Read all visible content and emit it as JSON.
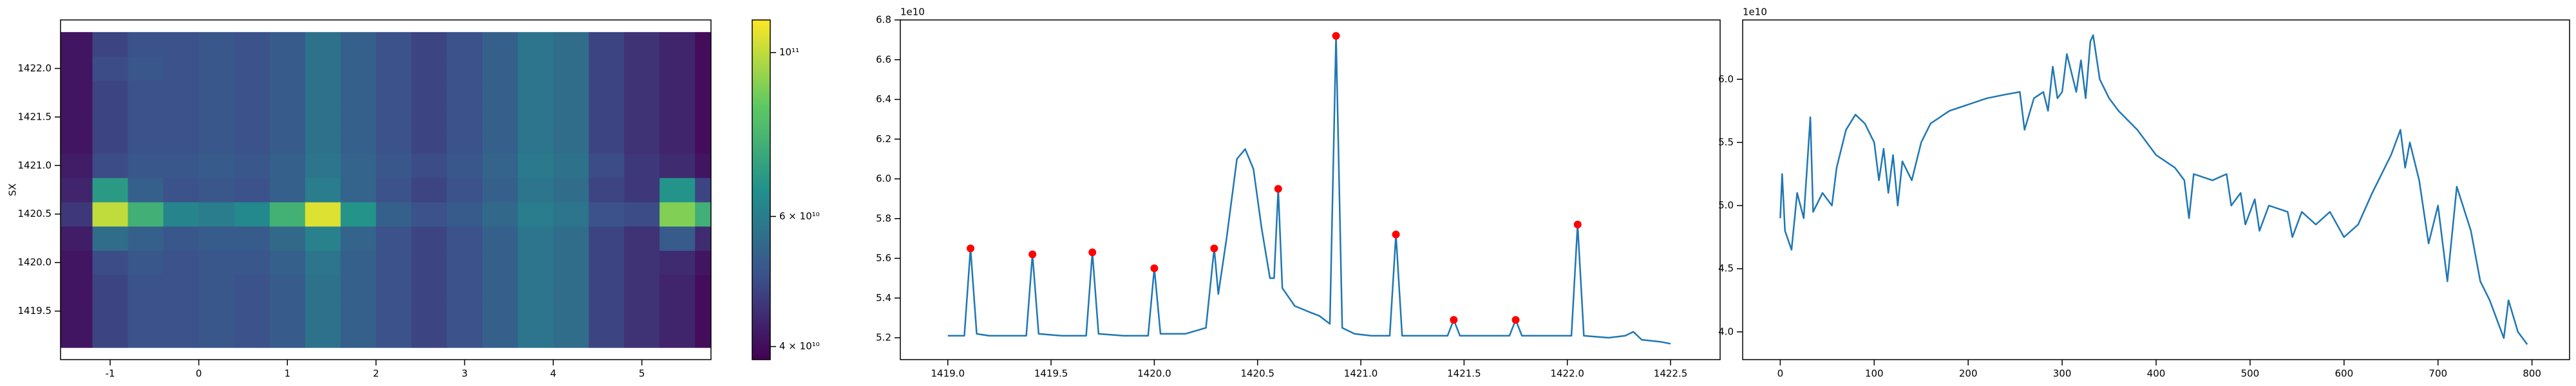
{
  "chart_data": [
    {
      "type": "heatmap",
      "cmap": "viridis",
      "ylabel": "SX",
      "xlim": [
        -1.56,
        5.78
      ],
      "ylim": [
        1419.0,
        1422.5
      ],
      "xticks": [
        -1,
        0,
        1,
        2,
        3,
        4,
        5
      ],
      "yticks": [
        1419.5,
        {
          "value": 1420.0,
          "label": "1420.0"
        },
        1420.5,
        {
          "value": 1421.0,
          "label": "1421.0"
        },
        1421.5,
        {
          "value": 1422.0,
          "label": "1422.0"
        }
      ],
      "x": [
        -1.4,
        -1.0,
        -0.6,
        -0.2,
        0.2,
        0.6,
        1.0,
        1.4,
        1.8,
        2.2,
        2.6,
        3.0,
        3.4,
        3.8,
        4.2,
        4.6,
        5.0,
        5.4,
        5.8
      ],
      "y": [
        1419.25,
        1419.5,
        1419.75,
        1420.0,
        1420.25,
        1420.5,
        1420.75,
        1421.0,
        1421.25,
        1421.5,
        1421.75,
        1422.0,
        1422.25
      ],
      "z": [
        [
          41000000000.0,
          48000000000.0,
          50000000000.0,
          50000000000.0,
          51000000000.0,
          50000000000.0,
          52000000000.0,
          57000000000.0,
          53000000000.0,
          50000000000.0,
          48000000000.0,
          50000000000.0,
          53000000000.0,
          58000000000.0,
          56000000000.0,
          48000000000.0,
          45000000000.0,
          43000000000.0,
          40000000000.0
        ],
        [
          41000000000.0,
          48000000000.0,
          50000000000.0,
          50000000000.0,
          51000000000.0,
          50000000000.0,
          52000000000.0,
          57000000000.0,
          53000000000.0,
          50000000000.0,
          48000000000.0,
          50000000000.0,
          53000000000.0,
          58000000000.0,
          56000000000.0,
          48000000000.0,
          45000000000.0,
          43000000000.0,
          40000000000.0
        ],
        [
          41000000000.0,
          48000000000.0,
          50000000000.0,
          50000000000.0,
          51000000000.0,
          50000000000.0,
          52000000000.0,
          57000000000.0,
          53000000000.0,
          50000000000.0,
          48000000000.0,
          50000000000.0,
          53000000000.0,
          58000000000.0,
          56000000000.0,
          48000000000.0,
          45000000000.0,
          43000000000.0,
          40000000000.0
        ],
        [
          41000000000.0,
          49000000000.0,
          51000000000.0,
          50000000000.0,
          51000000000.0,
          51000000000.0,
          53000000000.0,
          58000000000.0,
          53000000000.0,
          50000000000.0,
          48000000000.0,
          50000000000.0,
          53000000000.0,
          58000000000.0,
          56000000000.0,
          48000000000.0,
          45000000000.0,
          44000000000.0,
          41000000000.0
        ],
        [
          42000000000.0,
          56000000000.0,
          53000000000.0,
          51000000000.0,
          52000000000.0,
          52000000000.0,
          55000000000.0,
          61000000000.0,
          54000000000.0,
          50000000000.0,
          48000000000.0,
          50000000000.0,
          53000000000.0,
          58000000000.0,
          56000000000.0,
          48000000000.0,
          45000000000.0,
          52000000000.0,
          44000000000.0
        ],
        [
          46000000000.0,
          100000000000.0,
          75000000000.0,
          62000000000.0,
          60000000000.0,
          63000000000.0,
          76000000000.0,
          105000000000.0,
          66000000000.0,
          53000000000.0,
          50000000000.0,
          52000000000.0,
          55000000000.0,
          60000000000.0,
          58000000000.0,
          50000000000.0,
          49000000000.0,
          90000000000.0,
          75000000000.0
        ],
        [
          43000000000.0,
          68000000000.0,
          53000000000.0,
          50000000000.0,
          51000000000.0,
          50000000000.0,
          53000000000.0,
          60000000000.0,
          54000000000.0,
          50000000000.0,
          48000000000.0,
          50000000000.0,
          53000000000.0,
          58000000000.0,
          56000000000.0,
          48000000000.0,
          46000000000.0,
          66000000000.0,
          48000000000.0
        ],
        [
          42000000000.0,
          49000000000.0,
          51000000000.0,
          51000000000.0,
          52000000000.0,
          51000000000.0,
          53000000000.0,
          58000000000.0,
          54000000000.0,
          51000000000.0,
          49000000000.0,
          51000000000.0,
          54000000000.0,
          59000000000.0,
          57000000000.0,
          49000000000.0,
          46000000000.0,
          44000000000.0,
          41000000000.0
        ],
        [
          41000000000.0,
          48000000000.0,
          50000000000.0,
          50000000000.0,
          51000000000.0,
          50000000000.0,
          52000000000.0,
          57000000000.0,
          53000000000.0,
          50000000000.0,
          48000000000.0,
          50000000000.0,
          53000000000.0,
          58000000000.0,
          56000000000.0,
          48000000000.0,
          45000000000.0,
          43000000000.0,
          40000000000.0
        ],
        [
          41000000000.0,
          48000000000.0,
          50000000000.0,
          50000000000.0,
          51000000000.0,
          50000000000.0,
          52000000000.0,
          57000000000.0,
          53000000000.0,
          50000000000.0,
          48000000000.0,
          50000000000.0,
          53000000000.0,
          58000000000.0,
          56000000000.0,
          48000000000.0,
          45000000000.0,
          43000000000.0,
          40000000000.0
        ],
        [
          41000000000.0,
          48000000000.0,
          50000000000.0,
          50000000000.0,
          51000000000.0,
          50000000000.0,
          52000000000.0,
          57000000000.0,
          53000000000.0,
          50000000000.0,
          48000000000.0,
          50000000000.0,
          53000000000.0,
          58000000000.0,
          56000000000.0,
          48000000000.0,
          45000000000.0,
          43000000000.0,
          40000000000.0
        ],
        [
          41000000000.0,
          49000000000.0,
          51000000000.0,
          50000000000.0,
          51000000000.0,
          50000000000.0,
          52000000000.0,
          57000000000.0,
          53000000000.0,
          50000000000.0,
          48000000000.0,
          50000000000.0,
          53000000000.0,
          58000000000.0,
          56000000000.0,
          48000000000.0,
          45000000000.0,
          43000000000.0,
          40000000000.0
        ],
        [
          41000000000.0,
          48000000000.0,
          50000000000.0,
          50000000000.0,
          51000000000.0,
          50000000000.0,
          52000000000.0,
          57000000000.0,
          53000000000.0,
          50000000000.0,
          48000000000.0,
          50000000000.0,
          53000000000.0,
          58000000000.0,
          56000000000.0,
          48000000000.0,
          45000000000.0,
          43000000000.0,
          40000000000.0
        ]
      ],
      "colorbar": {
        "scale": "log",
        "lim": [
          38400000000.0,
          110700000000.0
        ],
        "ticks": [
          {
            "value": 40000000000.0,
            "label": "4 × 10¹⁰"
          },
          {
            "value": 60000000000.0,
            "label": "6 × 10¹⁰"
          },
          {
            "value": 100000000000.0,
            "label": "10¹¹"
          }
        ]
      }
    },
    {
      "type": "line",
      "color": "#1f77b4",
      "y_offset_label": "1e10",
      "xlim": [
        1418.77,
        1422.74
      ],
      "ylim": [
        5.09,
        6.8
      ],
      "xticks": [
        {
          "value": 1419.0,
          "label": "1419.0"
        },
        1419.5,
        {
          "value": 1420.0,
          "label": "1420.0"
        },
        1420.5,
        {
          "value": 1421.0,
          "label": "1421.0"
        },
        1421.5,
        {
          "value": 1422.0,
          "label": "1422.0"
        },
        1422.5
      ],
      "yticks": [
        5.2,
        5.4,
        5.6,
        5.8,
        {
          "value": 6.0,
          "label": "6.0"
        },
        6.2,
        6.4,
        6.6,
        6.8
      ],
      "x": [
        1419.0,
        1419.08,
        1419.11,
        1419.14,
        1419.2,
        1419.3,
        1419.38,
        1419.41,
        1419.44,
        1419.55,
        1419.67,
        1419.7,
        1419.73,
        1419.85,
        1419.97,
        1420.0,
        1420.03,
        1420.15,
        1420.25,
        1420.29,
        1420.31,
        1420.35,
        1420.4,
        1420.44,
        1420.48,
        1420.52,
        1420.56,
        1420.58,
        1420.6,
        1420.62,
        1420.68,
        1420.75,
        1420.8,
        1420.85,
        1420.88,
        1420.91,
        1420.97,
        1421.05,
        1421.14,
        1421.17,
        1421.2,
        1421.3,
        1421.42,
        1421.45,
        1421.48,
        1421.6,
        1421.72,
        1421.75,
        1421.78,
        1421.9,
        1422.02,
        1422.05,
        1422.08,
        1422.2,
        1422.28,
        1422.32,
        1422.36,
        1422.45,
        1422.5
      ],
      "values": [
        5.21,
        5.21,
        5.65,
        5.22,
        5.21,
        5.21,
        5.21,
        5.62,
        5.22,
        5.21,
        5.21,
        5.63,
        5.22,
        5.21,
        5.21,
        5.55,
        5.22,
        5.22,
        5.25,
        5.65,
        5.42,
        5.7,
        6.1,
        6.15,
        6.05,
        5.75,
        5.5,
        5.5,
        5.95,
        5.45,
        5.36,
        5.33,
        5.31,
        5.27,
        6.72,
        5.25,
        5.22,
        5.21,
        5.21,
        5.72,
        5.21,
        5.21,
        5.21,
        5.29,
        5.21,
        5.21,
        5.21,
        5.29,
        5.21,
        5.21,
        5.21,
        5.77,
        5.21,
        5.2,
        5.21,
        5.23,
        5.19,
        5.18,
        5.17
      ],
      "markers": {
        "color": "#ff0000",
        "x": [
          1419.11,
          1419.41,
          1419.7,
          1420.0,
          1420.29,
          1420.6,
          1420.88,
          1421.17,
          1421.45,
          1421.75,
          1422.05
        ],
        "values": [
          5.65,
          5.62,
          5.63,
          5.55,
          5.65,
          5.95,
          6.72,
          5.72,
          5.29,
          5.29,
          5.77
        ]
      }
    },
    {
      "type": "line",
      "color": "#1f77b4",
      "y_offset_label": "1e10",
      "xlim": [
        -40,
        840
      ],
      "ylim": [
        3.78,
        6.47
      ],
      "xticks": [
        0,
        100,
        200,
        300,
        400,
        500,
        600,
        700,
        800
      ],
      "yticks": [
        {
          "value": 4.0,
          "label": "4.0"
        },
        4.5,
        {
          "value": 5.0,
          "label": "5.0"
        },
        5.5,
        {
          "value": 6.0,
          "label": "6.0"
        }
      ],
      "x": [
        0,
        2,
        5,
        12,
        18,
        25,
        32,
        35,
        45,
        55,
        60,
        70,
        80,
        90,
        100,
        105,
        110,
        115,
        120,
        125,
        130,
        140,
        150,
        160,
        180,
        200,
        220,
        240,
        255,
        260,
        270,
        280,
        285,
        290,
        295,
        300,
        305,
        315,
        320,
        325,
        330,
        333,
        340,
        350,
        360,
        380,
        400,
        420,
        430,
        435,
        440,
        460,
        475,
        480,
        490,
        495,
        505,
        510,
        520,
        540,
        545,
        555,
        570,
        585,
        600,
        615,
        630,
        650,
        660,
        665,
        670,
        680,
        690,
        700,
        710,
        720,
        735,
        745,
        755,
        770,
        775,
        785,
        795
      ],
      "values": [
        4.9,
        5.25,
        4.8,
        4.65,
        5.1,
        4.9,
        5.7,
        4.95,
        5.1,
        5.0,
        5.3,
        5.6,
        5.72,
        5.65,
        5.5,
        5.2,
        5.45,
        5.1,
        5.4,
        5.0,
        5.35,
        5.2,
        5.5,
        5.65,
        5.75,
        5.8,
        5.85,
        5.88,
        5.9,
        5.6,
        5.85,
        5.9,
        5.75,
        6.1,
        5.85,
        5.9,
        6.2,
        5.9,
        6.15,
        5.85,
        6.3,
        6.35,
        6.0,
        5.85,
        5.75,
        5.6,
        5.4,
        5.3,
        5.2,
        4.9,
        5.25,
        5.2,
        5.25,
        5.0,
        5.1,
        4.85,
        5.05,
        4.8,
        5.0,
        4.95,
        4.75,
        4.95,
        4.85,
        4.95,
        4.75,
        4.85,
        5.1,
        5.4,
        5.6,
        5.3,
        5.5,
        5.2,
        4.7,
        5.0,
        4.4,
        5.15,
        4.8,
        4.4,
        4.25,
        3.95,
        4.25,
        4.0,
        3.9
      ]
    }
  ]
}
